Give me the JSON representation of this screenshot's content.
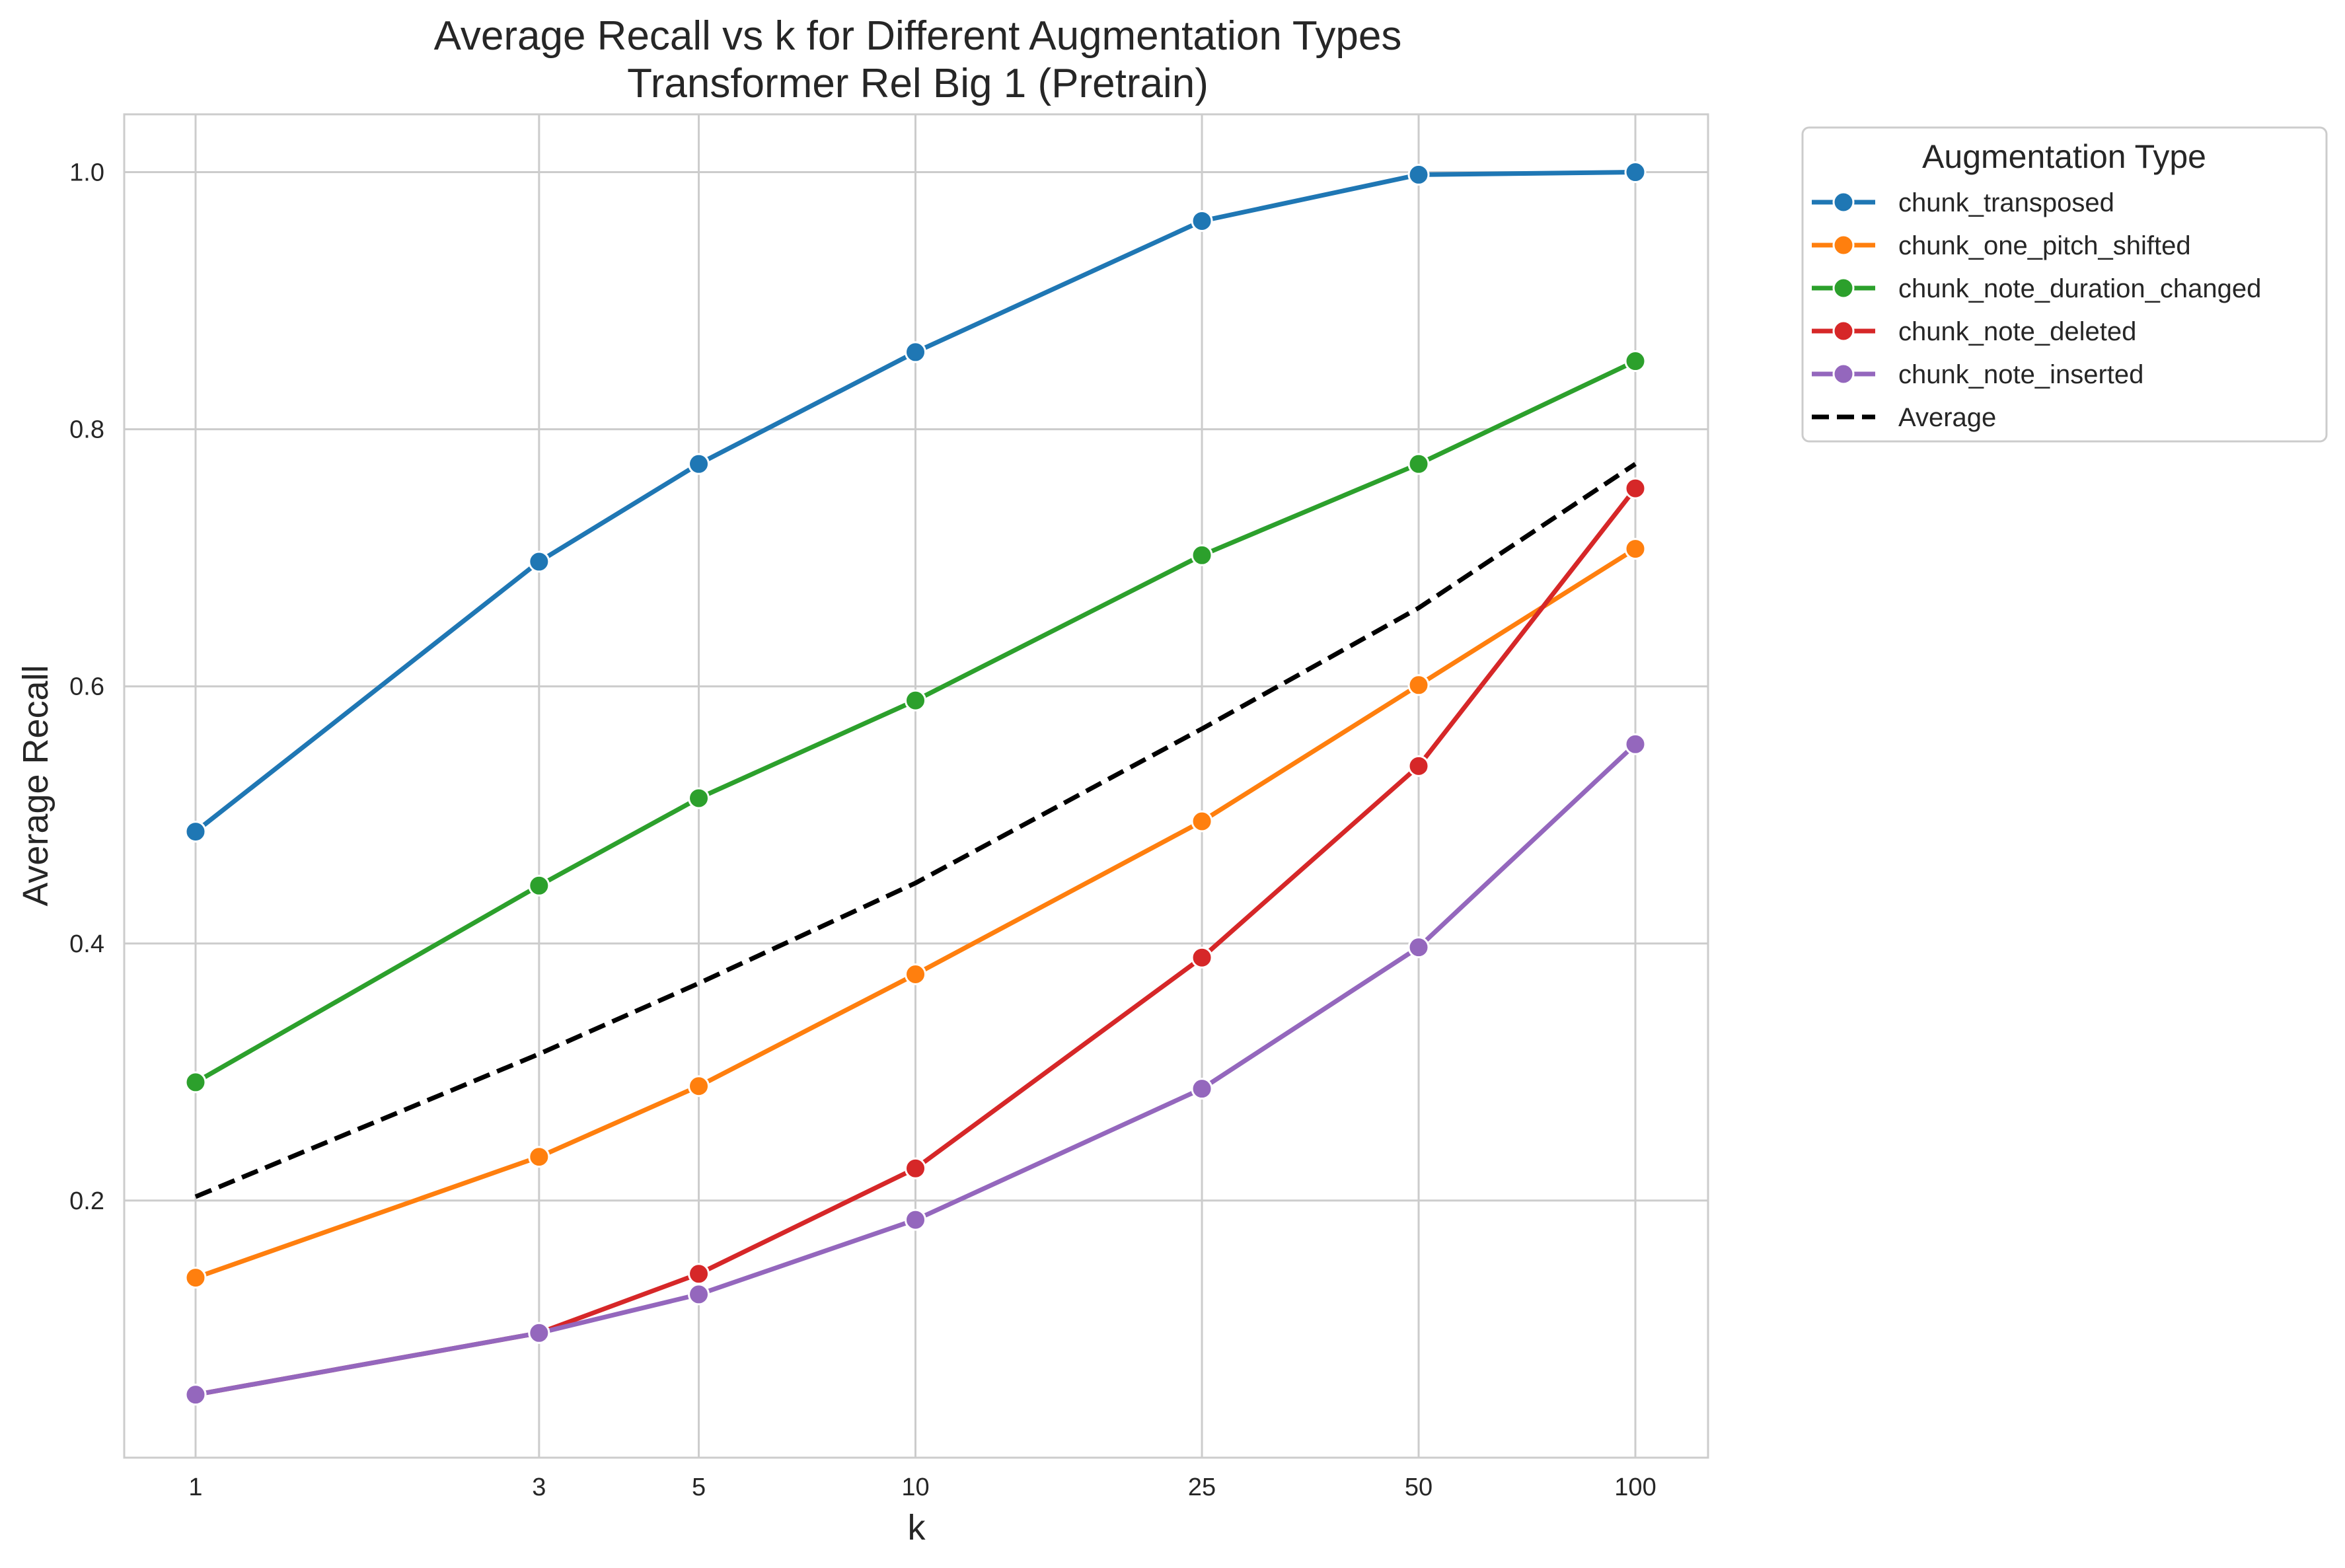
{
  "chart_data": {
    "type": "line",
    "title": "Average Recall vs k for Different Augmentation Types",
    "subtitle": "Transformer Rel Big 1 (Pretrain)",
    "xlabel": "k",
    "ylabel": "Average Recall",
    "x_scale": "log",
    "x": [
      1,
      3,
      5,
      10,
      25,
      50,
      100
    ],
    "x_tick_labels": [
      "1",
      "3",
      "5",
      "10",
      "25",
      "50",
      "100"
    ],
    "y_ticks": [
      0.2,
      0.4,
      0.6,
      0.8,
      1.0
    ],
    "y_tick_labels": [
      "0.2",
      "0.4",
      "0.6",
      "0.8",
      "1.0"
    ],
    "ylim": [
      0.0,
      1.045
    ],
    "grid": true,
    "legend_title": "Augmentation Type",
    "legend_position": "outside-top-right",
    "series": [
      {
        "name": "chunk_transposed",
        "color": "#1f77b4",
        "style": "solid",
        "marker": "circle",
        "values": [
          0.487,
          0.697,
          0.773,
          0.86,
          0.962,
          0.998,
          1.0
        ]
      },
      {
        "name": "chunk_one_pitch_shifted",
        "color": "#ff7f0e",
        "style": "solid",
        "marker": "circle",
        "values": [
          0.14,
          0.234,
          0.289,
          0.376,
          0.495,
          0.601,
          0.707
        ]
      },
      {
        "name": "chunk_note_duration_changed",
        "color": "#2ca02c",
        "style": "solid",
        "marker": "circle",
        "values": [
          0.292,
          0.445,
          0.513,
          0.589,
          0.702,
          0.773,
          0.853
        ]
      },
      {
        "name": "chunk_note_deleted",
        "color": "#d62728",
        "style": "solid",
        "marker": "circle",
        "values": [
          0.049,
          0.097,
          0.143,
          0.225,
          0.389,
          0.538,
          0.754
        ]
      },
      {
        "name": "chunk_note_inserted",
        "color": "#9467bd",
        "style": "solid",
        "marker": "circle",
        "values": [
          0.049,
          0.097,
          0.127,
          0.185,
          0.287,
          0.397,
          0.555
        ]
      },
      {
        "name": "Average",
        "color": "#000000",
        "style": "dashed",
        "marker": "none",
        "values": [
          0.203,
          0.314,
          0.369,
          0.447,
          0.567,
          0.661,
          0.773
        ]
      }
    ]
  }
}
